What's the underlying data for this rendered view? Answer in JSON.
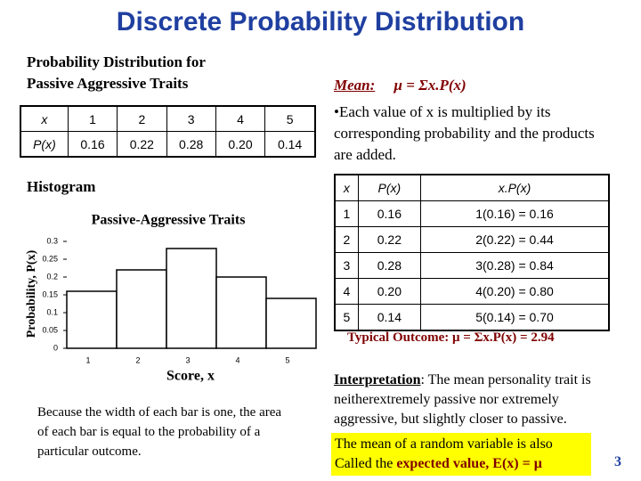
{
  "title": "Discrete Probability Distribution",
  "left_heading_lines": [
    "Probability Distribution for",
    "Passive Aggressive Traits"
  ],
  "table": {
    "rows": [
      [
        "x",
        "1",
        "2",
        "3",
        "4",
        "5"
      ],
      [
        "P(x)",
        "0.16",
        "0.22",
        "0.28",
        "0.20",
        "0.14"
      ]
    ]
  },
  "histogram_label": "Histogram",
  "chart_data": {
    "type": "bar",
    "title": "Passive-Aggressive Traits",
    "x_label": "Score, x",
    "y_label": "Probability, P(x)",
    "categories": [
      "1",
      "2",
      "3",
      "4",
      "5"
    ],
    "values": [
      0.16,
      0.22,
      0.28,
      0.2,
      0.14
    ],
    "color": "#ffffff",
    "ylim": [
      0,
      0.3
    ],
    "yticks": [
      0,
      0.05,
      0.1,
      0.15,
      0.2,
      0.25,
      0.3
    ]
  },
  "caption": "Because the width of each bar is one, the area of each bar is equal to the probability of a particular outcome.",
  "mean": {
    "label": "Mean:",
    "formula": "μ = Σx.P(x)"
  },
  "bullet": "•Each value of x is multiplied by its corresponding probability and the products are added.",
  "mean_table": {
    "header": [
      "x",
      "P(x)",
      "x.P(x)"
    ],
    "rows": [
      [
        "1",
        "0.16",
        "1(0.16) = 0.16"
      ],
      [
        "2",
        "0.22",
        "2(0.22) = 0.44"
      ],
      [
        "3",
        "0.28",
        "3(0.28) = 0.84"
      ],
      [
        "4",
        "0.20",
        "4(0.20) = 0.80"
      ],
      [
        "5",
        "0.14",
        "5(0.14) = 0.70"
      ]
    ]
  },
  "typical": "Typical Outcome: μ = Σx.P(x) = 2.94",
  "interpretation": {
    "label": "Interpretation",
    "text": ": The mean personality trait is neitherextremely passive nor extremely aggressive, but slightly closer to passive."
  },
  "box": {
    "text": "The mean of a random variable is also Called the ",
    "term": "expected value,",
    "formula": " E(x) = μ"
  },
  "page_number": "3"
}
